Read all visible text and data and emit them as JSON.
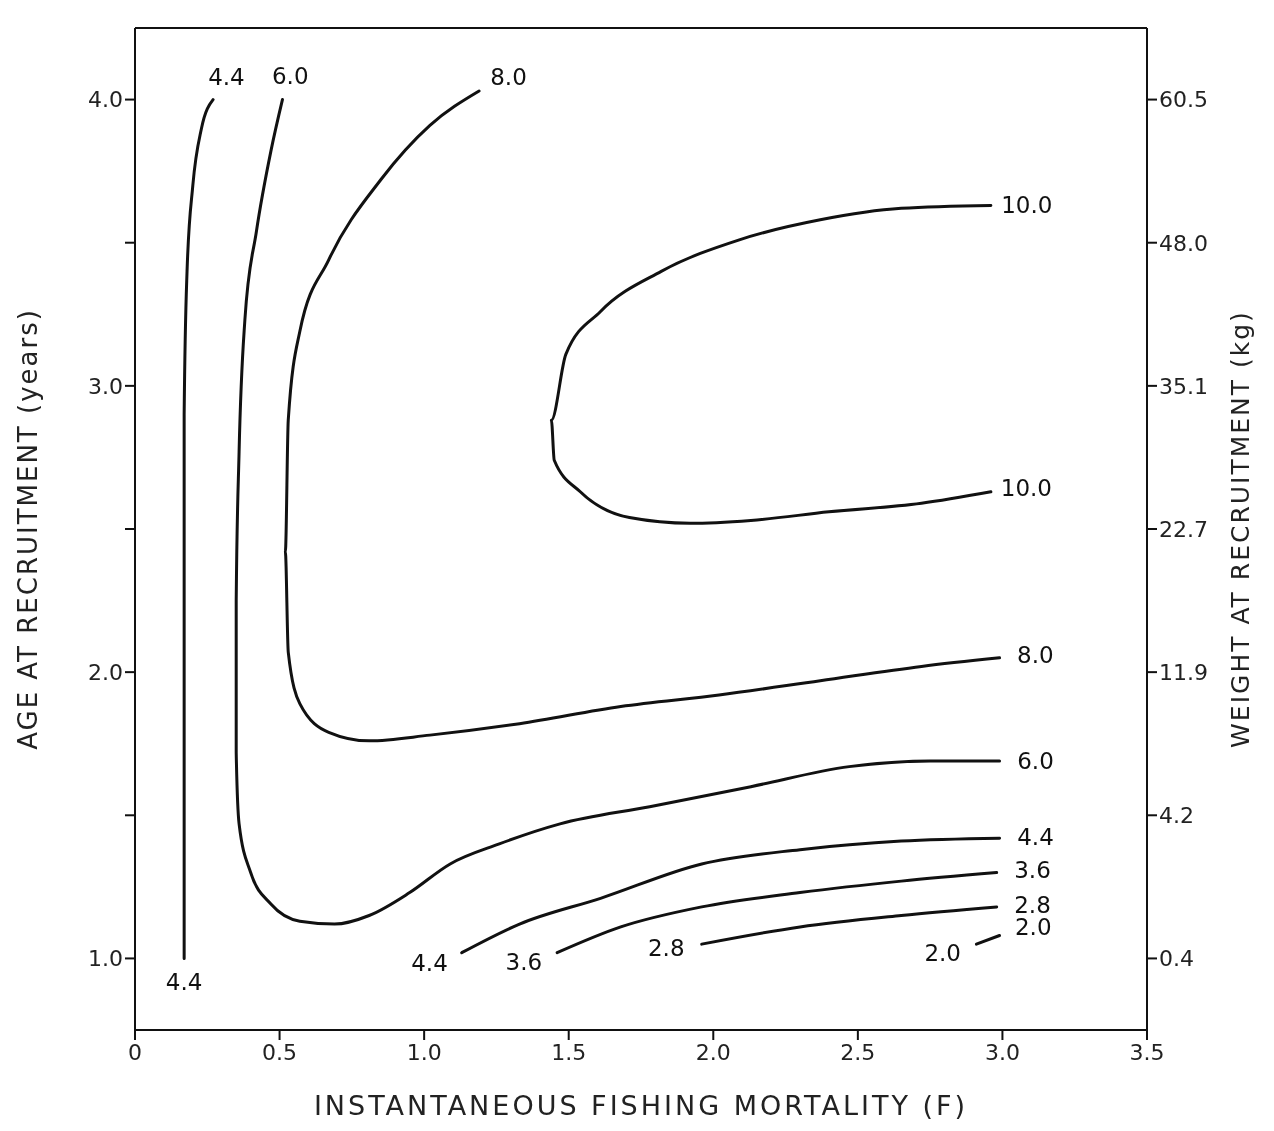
{
  "chart_data": {
    "type": "line",
    "xlabel": "INSTANTANEOUS FISHING MORTALITY (F)",
    "ylabel": "AGE AT RECRUITMENT (years)",
    "y2label": "WEIGHT AT RECRUITMENT (kg)",
    "xlim": [
      0,
      3.5
    ],
    "xticks": [
      0,
      0.5,
      {
        "value": 1,
        "label": "1.0"
      },
      1.5,
      {
        "value": 2,
        "label": "2.0"
      },
      2.5,
      {
        "value": 3,
        "label": "3.0"
      },
      3.5
    ],
    "ylim": [
      0.75,
      4.25
    ],
    "yticks": [
      {
        "value": 1,
        "label": "1.0"
      },
      {
        "value": 1.5,
        "label": null
      },
      {
        "value": 2,
        "label": "2.0"
      },
      {
        "value": 2.5,
        "label": null
      },
      {
        "value": 3,
        "label": "3.0"
      },
      {
        "value": 3.5,
        "label": null
      },
      {
        "value": 4,
        "label": "4.0"
      }
    ],
    "y2_categories": [
      "60.5",
      "48.0",
      "35.1",
      "22.7",
      "11.9",
      "4.2",
      "0.4"
    ],
    "grid": false,
    "legend": false,
    "marker": "none",
    "line_style": "solid",
    "series": [
      {
        "color": "#111111",
        "x": [
          0.17,
          0.17,
          0.17,
          0.18,
          0.2,
          0.23,
          0.27
        ],
        "values": [
          1.0,
          1.9,
          2.9,
          3.4,
          3.7,
          3.9,
          4.0
        ]
      },
      {
        "color": "#111111",
        "x": [
          0.51,
          0.47,
          0.42,
          0.38,
          0.36,
          0.35,
          0.35,
          0.36,
          0.4,
          0.47,
          0.57,
          0.69,
          0.81,
          0.95,
          1.09,
          1.26,
          1.47,
          1.78,
          2.13,
          2.47,
          2.75,
          2.99
        ],
        "values": [
          4.0,
          3.82,
          3.54,
          3.23,
          2.77,
          2.25,
          1.72,
          1.47,
          1.3,
          1.19,
          1.13,
          1.12,
          1.15,
          1.23,
          1.33,
          1.4,
          1.47,
          1.53,
          1.6,
          1.67,
          1.69,
          1.69
        ]
      },
      {
        "color": "#111111",
        "x": [
          1.19,
          1.02,
          0.85,
          0.67,
          0.57,
          0.53,
          0.52,
          0.53,
          0.57,
          0.67,
          0.81,
          1.02,
          1.33,
          1.68,
          2.02,
          2.37,
          2.72,
          2.99
        ],
        "values": [
          4.03,
          3.91,
          3.72,
          3.44,
          3.19,
          2.88,
          2.42,
          2.07,
          1.89,
          1.79,
          1.76,
          1.78,
          1.82,
          1.88,
          1.92,
          1.97,
          2.02,
          2.05
        ]
      },
      {
        "color": "#111111",
        "x": [
          2.96,
          2.65,
          2.37,
          2.09,
          1.82,
          1.61,
          1.49,
          1.44,
          1.45,
          1.54,
          1.71,
          1.92,
          2.13,
          2.4,
          2.72,
          2.96
        ],
        "values": [
          3.63,
          3.62,
          3.58,
          3.51,
          3.4,
          3.26,
          3.11,
          2.88,
          2.74,
          2.63,
          2.54,
          2.52,
          2.53,
          2.56,
          2.59,
          2.63
        ]
      },
      {
        "color": "#111111",
        "x": [
          1.13,
          1.33,
          1.61,
          1.96,
          2.3,
          2.65,
          2.99
        ],
        "values": [
          1.02,
          1.12,
          1.21,
          1.33,
          1.38,
          1.41,
          1.42
        ]
      },
      {
        "color": "#111111",
        "x": [
          1.46,
          1.68,
          1.96,
          2.3,
          2.65,
          2.98
        ],
        "values": [
          1.02,
          1.11,
          1.18,
          1.23,
          1.27,
          1.3
        ]
      },
      {
        "color": "#111111",
        "x": [
          1.96,
          2.3,
          2.65,
          2.98
        ],
        "values": [
          1.05,
          1.11,
          1.15,
          1.18
        ]
      },
      {
        "color": "#111111",
        "x": [
          2.91,
          2.99
        ],
        "values": [
          1.05,
          1.08
        ]
      }
    ],
    "annotations": [
      {
        "text": "4.4",
        "x": 0.27,
        "y": 4.0
      },
      {
        "text": "6.0",
        "x": 0.51,
        "y": 4.0
      },
      {
        "text": "8.0",
        "x": 1.19,
        "y": 4.03
      },
      {
        "text": "10.0",
        "x": 2.96,
        "y": 3.63
      },
      {
        "text": "10.0",
        "x": 2.96,
        "y": 2.63
      },
      {
        "text": "8.0",
        "x": 2.99,
        "y": 2.05
      },
      {
        "text": "6.0",
        "x": 2.99,
        "y": 1.69
      },
      {
        "text": "4.4",
        "x": 2.99,
        "y": 1.42
      },
      {
        "text": "3.6",
        "x": 2.98,
        "y": 1.3
      },
      {
        "text": "2.8",
        "x": 2.98,
        "y": 1.18
      },
      {
        "text": "2.0",
        "x": 2.99,
        "y": 1.08
      },
      {
        "text": "2.0",
        "x": 2.91,
        "y": 1.05
      },
      {
        "text": "2.8",
        "x": 1.96,
        "y": 1.05
      },
      {
        "text": "3.6",
        "x": 1.46,
        "y": 1.02
      },
      {
        "text": "4.4",
        "x": 1.13,
        "y": 1.02
      },
      {
        "text": "4.4",
        "x": 0.17,
        "y": 1.0
      }
    ]
  }
}
